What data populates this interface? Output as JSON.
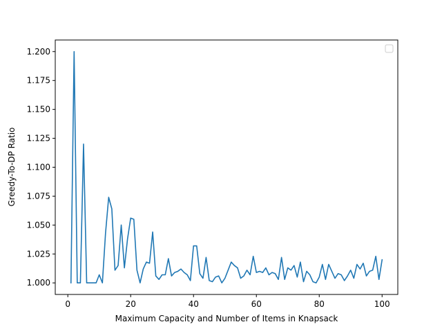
{
  "chart_data": {
    "type": "line",
    "title": "",
    "xlabel": "Maximum Capacity and Number of Items in Knapsack",
    "ylabel": "Greedy-To-DP Ratio",
    "xlim": [
      -4.0,
      105.0
    ],
    "ylim": [
      0.99,
      1.21
    ],
    "xticks": [
      0,
      20,
      40,
      60,
      80,
      100
    ],
    "xtick_labels": [
      "0",
      "20",
      "40",
      "60",
      "80",
      "100"
    ],
    "yticks": [
      1.0,
      1.025,
      1.05,
      1.075,
      1.1,
      1.125,
      1.15,
      1.175,
      1.2
    ],
    "ytick_labels": [
      "1.000",
      "1.025",
      "1.050",
      "1.075",
      "1.100",
      "1.125",
      "1.150",
      "1.175",
      "1.200"
    ],
    "grid": false,
    "legend": {
      "placement": "top-right",
      "entries": []
    },
    "series_color": "#1f77b4",
    "series": [
      {
        "x": [
          1,
          2,
          3,
          4,
          5,
          6,
          7,
          8,
          9,
          10,
          11,
          12,
          13,
          14,
          15,
          16,
          17,
          18,
          19,
          20,
          21,
          22,
          23,
          24,
          25,
          26,
          27,
          28,
          29,
          30,
          31,
          32,
          33,
          34,
          35,
          36,
          37,
          38,
          39,
          40,
          41,
          42,
          43,
          44,
          45,
          46,
          47,
          48,
          49,
          50,
          51,
          52,
          53,
          54,
          55,
          56,
          57,
          58,
          59,
          60,
          61,
          62,
          63,
          64,
          65,
          66,
          67,
          68,
          69,
          70,
          71,
          72,
          73,
          74,
          75,
          76,
          77,
          78,
          79,
          80,
          81,
          82,
          83,
          84,
          85,
          86,
          87,
          88,
          89,
          90,
          91,
          92,
          93,
          94,
          95,
          96,
          97,
          98,
          99,
          100
        ],
        "values": [
          1.0,
          1.2,
          1.0,
          1.0,
          1.12,
          1.0,
          1.0,
          1.0,
          1.0,
          1.007,
          1.0,
          1.043,
          1.074,
          1.064,
          1.011,
          1.015,
          1.05,
          1.013,
          1.038,
          1.056,
          1.055,
          1.011,
          1.0,
          1.012,
          1.018,
          1.017,
          1.044,
          1.006,
          1.003,
          1.007,
          1.007,
          1.021,
          1.006,
          1.009,
          1.01,
          1.012,
          1.009,
          1.007,
          1.002,
          1.032,
          1.032,
          1.008,
          1.004,
          1.022,
          1.002,
          1.001,
          1.005,
          1.006,
          1.0,
          1.004,
          1.011,
          1.018,
          1.015,
          1.013,
          1.004,
          1.006,
          1.011,
          1.007,
          1.023,
          1.009,
          1.01,
          1.009,
          1.013,
          1.007,
          1.009,
          1.008,
          1.003,
          1.022,
          1.003,
          1.013,
          1.011,
          1.015,
          1.005,
          1.018,
          1.001,
          1.01,
          1.007,
          1.001,
          1.0,
          1.005,
          1.016,
          1.003,
          1.016,
          1.01,
          1.004,
          1.008,
          1.007,
          1.002,
          1.006,
          1.011,
          1.004,
          1.016,
          1.012,
          1.017,
          1.006,
          1.01,
          1.011,
          1.023,
          1.003,
          1.02
        ]
      }
    ]
  }
}
